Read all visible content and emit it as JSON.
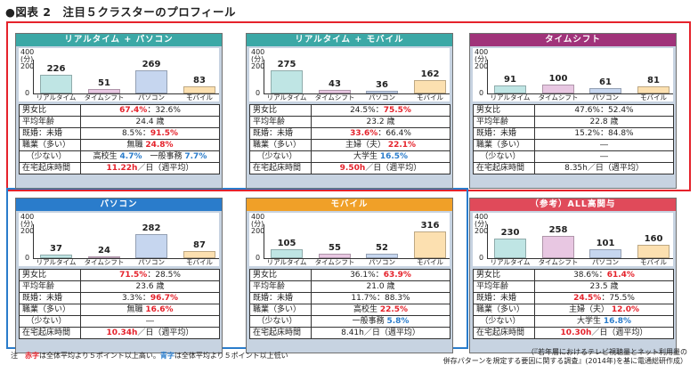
{
  "title": "●図表 2　注目５クラスターのプロフィール",
  "axis": {
    "tick_400": "400",
    "unit": "(分)",
    "tick_200": "200",
    "tick_0": "0"
  },
  "row_labels": {
    "gender": "男女比",
    "age": "平均年齢",
    "married": "既婚：未婚",
    "job_many": "職業（多い）",
    "job_few": "　（少ない）",
    "home_time": "在宅起床時間"
  },
  "panels": [
    {
      "title": "リアルタイム + パソコン",
      "header_color": "#3ba8a6",
      "chart": {
        "type": "bar",
        "categories": [
          "リアルタイム",
          "タイムシフト",
          "パソコン",
          "モバイル"
        ],
        "values": [
          226,
          51,
          269,
          83
        ],
        "ylim": [
          0,
          400
        ]
      },
      "gender": {
        "male": "67.4%",
        "sep": "：",
        "female": "32.6%",
        "male_cls": "red",
        "female_cls": ""
      },
      "age": "24.4 歳",
      "married": {
        "a": "8.5%",
        "sep": "：",
        "b": "91.5%",
        "a_cls": "",
        "b_cls": "red"
      },
      "job_many": {
        "text": "無職",
        "pct": "24.8%",
        "pct_cls": "red"
      },
      "job_few": {
        "text": "高校生 ",
        "pct": "4.7%",
        "pct_cls": "blue",
        "text2": "　一般事務 ",
        "pct2": "7.7%",
        "pct2_cls": "blue"
      },
      "time": {
        "h": "11.22h",
        "h_cls": "red",
        "rest": "／日（週平均）"
      }
    },
    {
      "title": "リアルタイム + モバイル",
      "header_color": "#3ba8a6",
      "chart": {
        "type": "bar",
        "categories": [
          "リアルタイム",
          "タイムシフト",
          "パソコン",
          "モバイル"
        ],
        "values": [
          275,
          43,
          36,
          162
        ],
        "ylim": [
          0,
          400
        ]
      },
      "gender": {
        "male": "24.5%",
        "sep": "：",
        "female": "75.5%",
        "male_cls": "",
        "female_cls": "red"
      },
      "age": "23.2 歳",
      "married": {
        "a": "33.6%",
        "sep": "：",
        "b": "66.4%",
        "a_cls": "red",
        "b_cls": ""
      },
      "job_many": {
        "text": "主婦（夫）",
        "pct": "22.1%",
        "pct_cls": "red"
      },
      "job_few": {
        "text": "大学生 ",
        "pct": "16.5%",
        "pct_cls": "blue",
        "text2": "",
        "pct2": "",
        "pct2_cls": ""
      },
      "time": {
        "h": "9.50h",
        "h_cls": "red",
        "rest": "／日（週平均）"
      }
    },
    {
      "title": "タイムシフト",
      "header_color": "#a0337a",
      "chart": {
        "type": "bar",
        "categories": [
          "リアルタイム",
          "タイムシフト",
          "パソコン",
          "モバイル"
        ],
        "values": [
          91,
          100,
          61,
          81
        ],
        "ylim": [
          0,
          400
        ]
      },
      "gender": {
        "male": "47.6%",
        "sep": "：",
        "female": "52.4%",
        "male_cls": "",
        "female_cls": ""
      },
      "age": "22.8 歳",
      "married": {
        "a": "15.2%",
        "sep": "：",
        "b": "84.8%",
        "a_cls": "",
        "b_cls": ""
      },
      "job_many": {
        "text": "―",
        "pct": "",
        "pct_cls": ""
      },
      "job_few": {
        "text": "―",
        "pct": "",
        "pct_cls": "",
        "text2": "",
        "pct2": "",
        "pct2_cls": ""
      },
      "time": {
        "h": "8.35h",
        "h_cls": "",
        "rest": "／日（週平均）"
      }
    },
    {
      "title": "パソコン",
      "header_color": "#2a7ccb",
      "chart": {
        "type": "bar",
        "categories": [
          "リアルタイム",
          "タイムシフト",
          "パソコン",
          "モバイル"
        ],
        "values": [
          37,
          24,
          282,
          87
        ],
        "ylim": [
          0,
          400
        ]
      },
      "gender": {
        "male": "71.5%",
        "sep": "：",
        "female": "28.5%",
        "male_cls": "red",
        "female_cls": ""
      },
      "age": "23.6 歳",
      "married": {
        "a": "3.3%",
        "sep": "：",
        "b": "96.7%",
        "a_cls": "",
        "b_cls": "red"
      },
      "job_many": {
        "text": "無職",
        "pct": "16.6%",
        "pct_cls": "red"
      },
      "job_few": {
        "text": "―",
        "pct": "",
        "pct_cls": "",
        "text2": "",
        "pct2": "",
        "pct2_cls": ""
      },
      "time": {
        "h": "10.34h",
        "h_cls": "red",
        "rest": "／日（週平均）"
      }
    },
    {
      "title": "モバイル",
      "header_color": "#f0a028",
      "chart": {
        "type": "bar",
        "categories": [
          "リアルタイム",
          "タイムシフト",
          "パソコン",
          "モバイル"
        ],
        "values": [
          105,
          55,
          52,
          316
        ],
        "ylim": [
          0,
          400
        ]
      },
      "gender": {
        "male": "36.1%",
        "sep": "：",
        "female": "63.9%",
        "male_cls": "",
        "female_cls": "red"
      },
      "age": "21.0 歳",
      "married": {
        "a": "11.7%",
        "sep": "：",
        "b": "88.3%",
        "a_cls": "",
        "b_cls": ""
      },
      "job_many": {
        "text": "高校生",
        "pct": "22.5%",
        "pct_cls": "red"
      },
      "job_few": {
        "text": "一般事務 ",
        "pct": "5.8%",
        "pct_cls": "blue",
        "text2": "",
        "pct2": "",
        "pct2_cls": ""
      },
      "time": {
        "h": "8.41h",
        "h_cls": "",
        "rest": "／日（週平均）"
      }
    },
    {
      "title": "（参考）ALL高関与",
      "header_color": "#e04a5a",
      "chart": {
        "type": "bar",
        "categories": [
          "リアルタイム",
          "タイムシフト",
          "パソコン",
          "モバイル"
        ],
        "values": [
          230,
          258,
          101,
          160
        ],
        "ylim": [
          0,
          400
        ]
      },
      "gender": {
        "male": "38.6%",
        "sep": "：",
        "female": "61.4%",
        "male_cls": "",
        "female_cls": "red"
      },
      "age": "23.5 歳",
      "married": {
        "a": "24.5%",
        "sep": "：",
        "b": "75.5%",
        "a_cls": "red",
        "b_cls": ""
      },
      "job_many": {
        "text": "主婦（夫）",
        "pct": "12.0%",
        "pct_cls": "red"
      },
      "job_few": {
        "text": "大学生 ",
        "pct": "16.8%",
        "pct_cls": "blue",
        "text2": "",
        "pct2": "",
        "pct2_cls": ""
      },
      "time": {
        "h": "10.30h",
        "h_cls": "red",
        "rest": "／日（週平均）"
      }
    }
  ],
  "bar_colors": {
    "realtime": "#bfe5e4",
    "timeshift": "#e8c7e2",
    "pc": "#c6d6ef",
    "mobile": "#fce0b0"
  },
  "footnote": {
    "prefix": "注　",
    "red": "赤字",
    "mid": "は全体平均より５ポイント以上高い。",
    "blue": "青字",
    "end": "は全体平均より５ポイント以上低い"
  },
  "source": {
    "line1": "（『若年層におけるテレビ視聴量とネット利用量の",
    "line2": "併存パターンを規定する要因に関する調査』(2014年)を基に電通総研作成）"
  }
}
